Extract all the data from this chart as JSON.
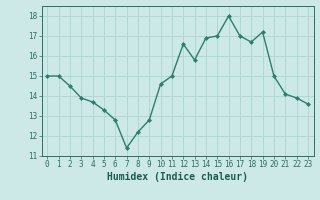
{
  "x": [
    0,
    1,
    2,
    3,
    4,
    5,
    6,
    7,
    8,
    9,
    10,
    11,
    12,
    13,
    14,
    15,
    16,
    17,
    18,
    19,
    20,
    21,
    22,
    23
  ],
  "y": [
    15.0,
    15.0,
    14.5,
    13.9,
    13.7,
    13.3,
    12.8,
    11.4,
    12.2,
    12.8,
    14.6,
    15.0,
    16.6,
    15.8,
    16.9,
    17.0,
    18.0,
    17.0,
    16.7,
    17.2,
    15.0,
    14.1,
    13.9,
    13.6
  ],
  "line_color": "#2e7d6e",
  "marker": "D",
  "marker_size": 2,
  "bg_color": "#cce9e7",
  "grid_color": "#b0d8d5",
  "xlabel": "Humidex (Indice chaleur)",
  "ylim": [
    11,
    18.5
  ],
  "yticks": [
    11,
    12,
    13,
    14,
    15,
    16,
    17,
    18
  ],
  "xticks": [
    0,
    1,
    2,
    3,
    4,
    5,
    6,
    7,
    8,
    9,
    10,
    11,
    12,
    13,
    14,
    15,
    16,
    17,
    18,
    19,
    20,
    21,
    22,
    23
  ],
  "tick_color": "#2e6e62",
  "label_color": "#1a5c52",
  "font_size": 5.5,
  "xlabel_fontsize": 7.0,
  "linewidth": 1.0
}
